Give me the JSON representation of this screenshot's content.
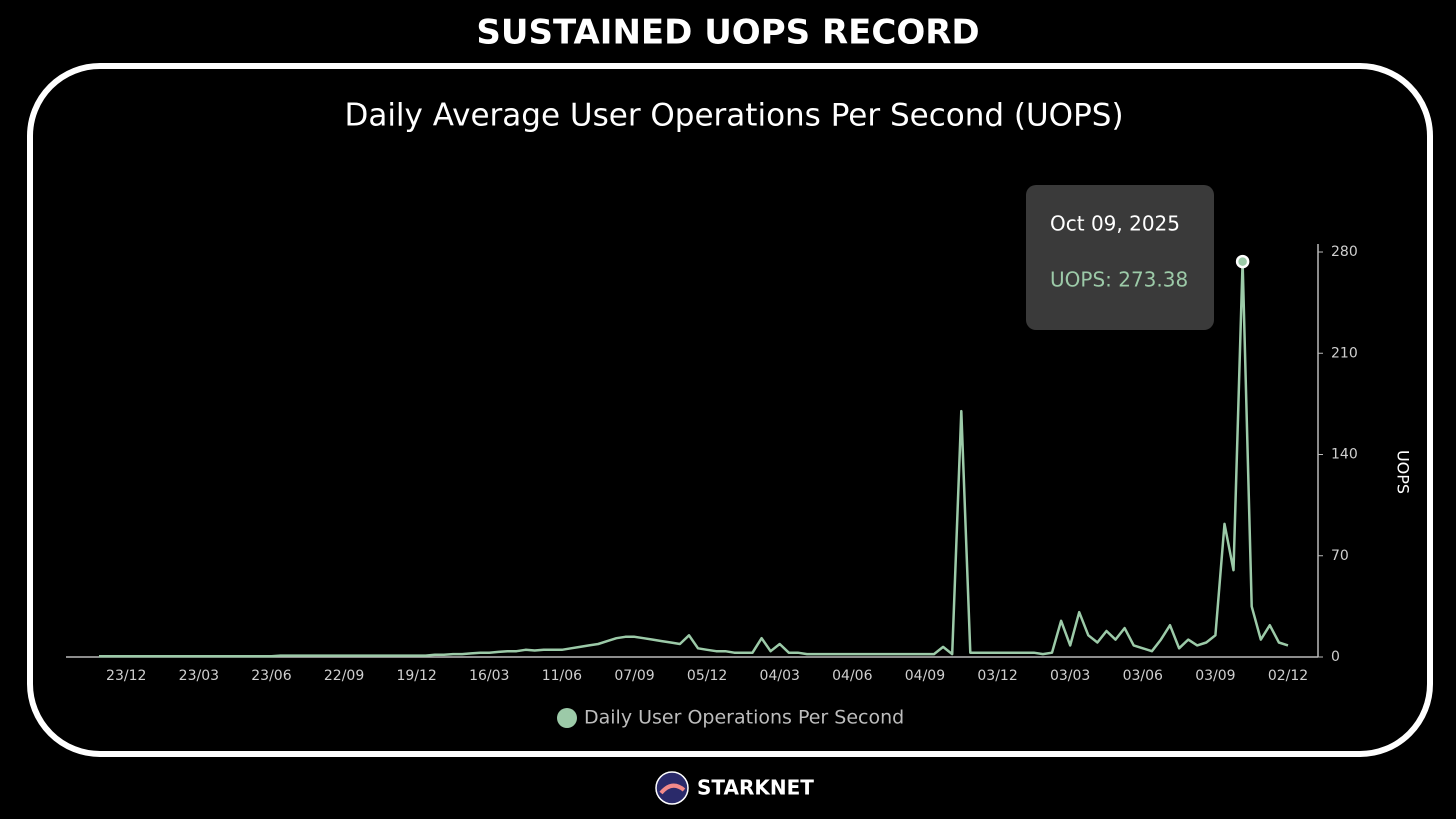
{
  "header": {
    "title": "SUSTAINED UOPS RECORD"
  },
  "chart_data": {
    "type": "line",
    "title": "Daily Average User Operations Per Second (UOPS)",
    "y_axis_label": "UOPS",
    "categories": [
      null,
      null,
      null,
      "23/12",
      null,
      null,
      null,
      null,
      null,
      null,
      null,
      "23/03",
      null,
      null,
      null,
      null,
      null,
      null,
      null,
      "23/06",
      null,
      null,
      null,
      null,
      null,
      null,
      null,
      "22/09",
      null,
      null,
      null,
      null,
      null,
      null,
      null,
      "19/12",
      null,
      null,
      null,
      null,
      null,
      null,
      null,
      "16/03",
      null,
      null,
      null,
      null,
      null,
      null,
      null,
      "11/06",
      null,
      null,
      null,
      null,
      null,
      null,
      null,
      "07/09",
      null,
      null,
      null,
      null,
      null,
      null,
      null,
      "05/12",
      null,
      null,
      null,
      null,
      null,
      null,
      null,
      "04/03",
      null,
      null,
      null,
      null,
      null,
      null,
      null,
      "04/06",
      null,
      null,
      null,
      null,
      null,
      null,
      null,
      "04/09",
      null,
      null,
      null,
      null,
      null,
      null,
      null,
      "03/12",
      null,
      null,
      null,
      null,
      null,
      null,
      null,
      "03/03",
      null,
      null,
      null,
      null,
      null,
      null,
      null,
      "03/06",
      null,
      null,
      null,
      null,
      null,
      null,
      null,
      "03/09",
      null,
      null,
      null,
      null,
      null,
      null,
      null,
      "02/12"
    ],
    "series": [
      {
        "name": "Daily User Operations Per Second",
        "color": "#9ccaa8",
        "values": [
          0.5,
          0.5,
          0.5,
          0.5,
          0.5,
          0.5,
          0.5,
          0.5,
          0.5,
          0.5,
          0.5,
          0.5,
          0.5,
          0.5,
          0.5,
          0.5,
          0.5,
          0.5,
          0.5,
          0.5,
          1,
          1,
          1,
          1,
          1,
          1,
          1,
          1,
          1,
          1,
          1,
          1,
          1,
          1,
          1,
          1,
          1,
          1.5,
          1.5,
          2,
          2,
          2.5,
          3,
          3,
          3.5,
          4,
          4,
          5,
          4.5,
          5,
          5,
          5,
          6,
          7,
          8,
          9,
          11,
          13,
          14,
          14,
          13,
          12,
          11,
          10,
          9,
          15,
          6,
          5,
          4,
          4,
          3,
          3,
          3,
          13,
          4,
          9,
          3,
          3,
          2,
          2,
          2,
          2,
          2,
          2,
          2,
          2,
          2,
          2,
          2,
          2,
          2,
          2,
          2,
          7,
          2,
          170,
          3,
          3,
          3,
          3,
          3,
          3,
          3,
          3,
          2,
          3,
          25,
          8,
          31,
          15,
          10,
          18,
          12,
          20,
          8,
          6,
          4,
          12,
          22,
          6,
          12,
          8,
          10,
          15,
          92,
          60,
          273.38,
          35,
          12,
          22,
          10,
          8
        ]
      }
    ],
    "ylim": [
      0,
      280
    ],
    "yticks": [
      0,
      70,
      140,
      210,
      280
    ],
    "tooltip": {
      "title": "Oct 09, 2025",
      "text": "UOPS: 273.38"
    }
  },
  "footer": {
    "brand": "STARKNET"
  }
}
